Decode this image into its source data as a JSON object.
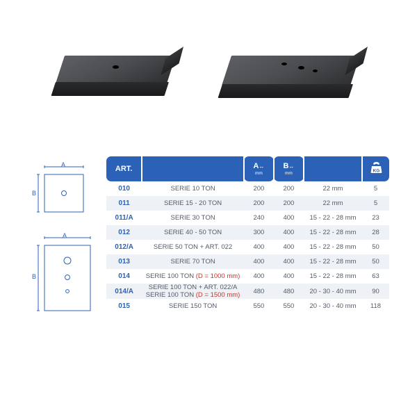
{
  "colors": {
    "header_bg": "#2b62b7",
    "header_text": "#ffffff",
    "row_alt_bg": "#eef1f6",
    "row_bg": "#ffffff",
    "art_text": "#2b62b7",
    "body_text": "#555c68",
    "dnote_text": "#c7362a",
    "diagram_stroke": "#2b62b7",
    "plate_top": "#4a4c50",
    "plate_front": "#1a1a1c"
  },
  "diagrams": {
    "label_A": "A",
    "label_B": "B",
    "d1": {
      "width_label": "A",
      "height_label": "B",
      "holes": 1
    },
    "d2": {
      "width_label": "A",
      "height_label": "B",
      "holes": 3
    }
  },
  "table": {
    "headers": {
      "art": "ART.",
      "desc": "",
      "A": "A",
      "A_sub": "mm",
      "B": "B",
      "B_sub": "mm",
      "note": "",
      "weight_icon": "kettlebell"
    },
    "rows": [
      {
        "art": "010",
        "desc": "SERIE 10 TON",
        "d": "",
        "A": "200",
        "B": "200",
        "note": "22 mm",
        "kg": "5"
      },
      {
        "art": "011",
        "desc": "SERIE 15 - 20 TON",
        "d": "",
        "A": "200",
        "B": "200",
        "note": "22 mm",
        "kg": "5"
      },
      {
        "art": "011/A",
        "desc": "SERIE 30 TON",
        "d": "",
        "A": "240",
        "B": "400",
        "note": "15 - 22 - 28 mm",
        "kg": "23"
      },
      {
        "art": "012",
        "desc": "SERIE 40 - 50 TON",
        "d": "",
        "A": "300",
        "B": "400",
        "note": "15 - 22 - 28 mm",
        "kg": "28"
      },
      {
        "art": "012/A",
        "desc": "SERIE 50 TON + ART. 022",
        "d": "",
        "A": "400",
        "B": "400",
        "note": "15 - 22 - 28 mm",
        "kg": "50"
      },
      {
        "art": "013",
        "desc": "SERIE 70 TON",
        "d": "",
        "A": "400",
        "B": "400",
        "note": "15 - 22 - 28 mm",
        "kg": "50"
      },
      {
        "art": "014",
        "desc": "SERIE 100 TON ",
        "d": "(D = 1000 mm)",
        "A": "400",
        "B": "400",
        "note": "15 - 22 - 28 mm",
        "kg": "63"
      },
      {
        "art": "014/A",
        "desc": "SERIE 100 TON + ART. 022/A\nSERIE 100 TON ",
        "d": "(D = 1500 mm)",
        "A": "480",
        "B": "480",
        "note": "20 - 30 - 40 mm",
        "kg": "90"
      },
      {
        "art": "015",
        "desc": "SERIE 150 TON",
        "d": "",
        "A": "550",
        "B": "550",
        "note": "20 - 30 - 40 mm",
        "kg": "118"
      }
    ]
  }
}
